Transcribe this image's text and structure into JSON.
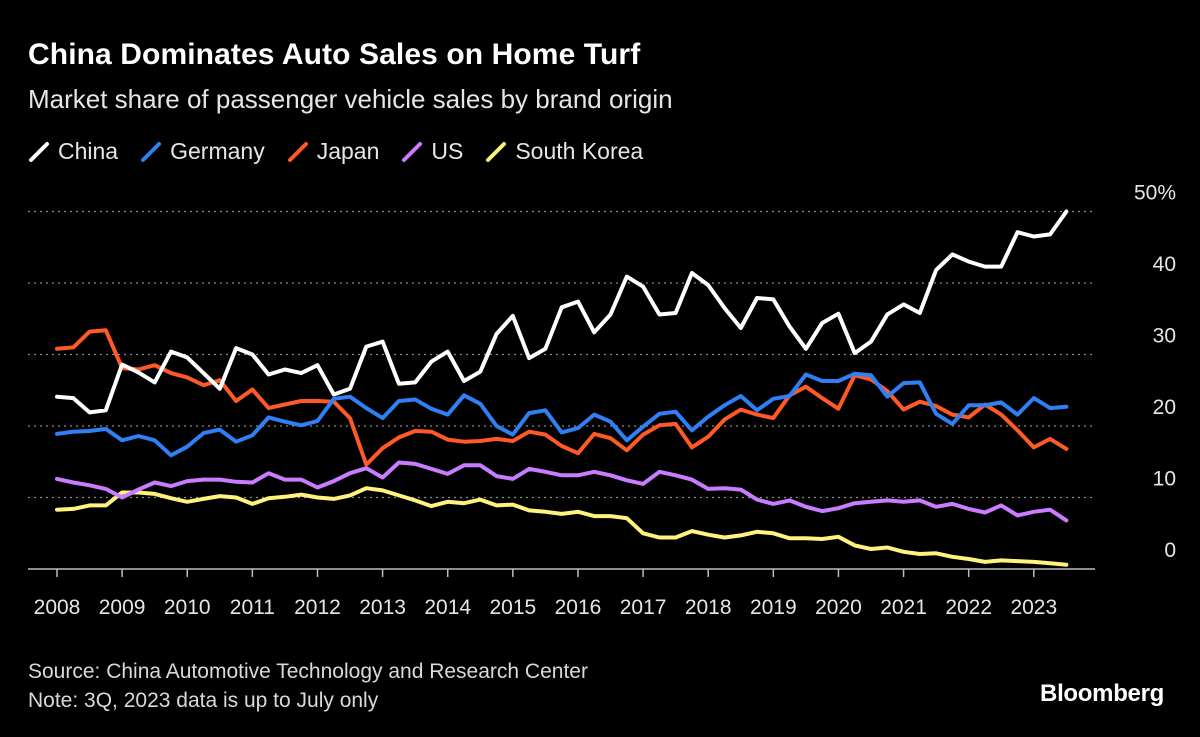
{
  "title": "China Dominates Auto Sales on Home Turf",
  "subtitle": "Market share of passenger vehicle sales by brand origin",
  "footer": {
    "source": "Source: China Automotive Technology and Research Center",
    "note": "Note: 3Q, 2023 data is up to July only"
  },
  "brand": "Bloomberg",
  "chart_data": {
    "type": "line",
    "x_labels": [
      "2008",
      "2009",
      "2010",
      "2011",
      "2012",
      "2013",
      "2014",
      "2015",
      "2016",
      "2017",
      "2018",
      "2019",
      "2020",
      "2021",
      "2022",
      "2023"
    ],
    "x_start": "2008Q1",
    "frequency": "quarterly",
    "y_ticks": [
      0,
      10,
      20,
      30,
      40,
      50
    ],
    "y_tick_labels": [
      "0",
      "10",
      "20",
      "30",
      "40",
      "50%"
    ],
    "ylim": [
      -3,
      50
    ],
    "grid": "horizontal dotted",
    "legend": "top-left",
    "series": [
      {
        "name": "China",
        "color": "#ffffff",
        "values": [
          24.1,
          23.9,
          21.9,
          22.2,
          28.6,
          27.5,
          26.1,
          30.4,
          29.6,
          27.4,
          25.2,
          30.9,
          30.0,
          27.2,
          27.9,
          27.4,
          28.5,
          24.4,
          25.2,
          31.1,
          31.8,
          25.9,
          26.1,
          29.0,
          30.4,
          26.3,
          27.6,
          32.9,
          35.4,
          29.5,
          30.8,
          36.6,
          37.4,
          33.1,
          35.6,
          40.9,
          39.5,
          35.6,
          35.8,
          41.4,
          39.7,
          36.5,
          33.7,
          37.9,
          37.7,
          33.9,
          30.8,
          34.4,
          35.7,
          30.2,
          31.8,
          35.6,
          37.0,
          35.8,
          41.8,
          44.0,
          43.0,
          42.3,
          42.3,
          47.1,
          46.5,
          46.8,
          50.0
        ]
      },
      {
        "name": "Germany",
        "color": "#2f7ff5",
        "values": [
          18.9,
          19.2,
          19.3,
          19.6,
          18.0,
          18.6,
          18.0,
          15.9,
          17.1,
          19.0,
          19.5,
          17.8,
          18.7,
          21.2,
          20.6,
          20.1,
          20.7,
          23.8,
          24.1,
          22.5,
          21.1,
          23.5,
          23.7,
          22.4,
          21.6,
          24.3,
          23.1,
          20.0,
          18.8,
          21.8,
          22.2,
          19.1,
          19.7,
          21.6,
          20.6,
          18.0,
          19.9,
          21.7,
          22.0,
          19.4,
          21.3,
          22.9,
          24.2,
          22.2,
          23.8,
          24.2,
          27.2,
          26.3,
          26.3,
          27.3,
          27.1,
          24.1,
          26.0,
          26.1,
          21.7,
          20.3,
          22.9,
          22.9,
          23.3,
          21.6,
          23.9,
          22.5,
          22.7
        ]
      },
      {
        "name": "Japan",
        "color": "#ff5a26",
        "values": [
          30.8,
          31.0,
          33.2,
          33.4,
          28.1,
          27.9,
          28.5,
          27.4,
          26.8,
          25.7,
          26.4,
          23.5,
          25.1,
          22.5,
          23.0,
          23.5,
          23.5,
          23.4,
          21.1,
          14.6,
          16.9,
          18.4,
          19.3,
          19.2,
          18.1,
          17.8,
          17.9,
          18.2,
          17.9,
          19.2,
          18.8,
          17.2,
          16.2,
          18.9,
          18.3,
          16.6,
          18.8,
          20.1,
          20.3,
          17.0,
          18.5,
          20.9,
          22.3,
          21.6,
          21.1,
          24.3,
          25.5,
          23.9,
          22.4,
          27.1,
          26.5,
          24.9,
          22.3,
          23.4,
          22.8,
          21.6,
          21.2,
          23.0,
          21.6,
          19.4,
          17.0,
          18.2,
          16.8
        ]
      },
      {
        "name": "US",
        "color": "#c97cff",
        "values": [
          12.6,
          12.1,
          11.7,
          11.2,
          10.0,
          11.1,
          12.1,
          11.6,
          12.3,
          12.5,
          12.5,
          12.2,
          12.1,
          13.4,
          12.5,
          12.5,
          11.4,
          12.3,
          13.4,
          14.1,
          12.8,
          14.9,
          14.7,
          14.0,
          13.3,
          14.5,
          14.5,
          13.0,
          12.6,
          14.0,
          13.6,
          13.1,
          13.1,
          13.6,
          13.1,
          12.4,
          11.9,
          13.6,
          13.1,
          12.5,
          11.2,
          11.3,
          11.1,
          9.7,
          9.1,
          9.6,
          8.7,
          8.1,
          8.5,
          9.2,
          9.4,
          9.6,
          9.4,
          9.6,
          8.7,
          9.1,
          8.4,
          7.9,
          8.9,
          7.5,
          8.0,
          8.3,
          6.8
        ]
      },
      {
        "name": "South Korea",
        "color": "#fff27d",
        "values": [
          8.3,
          8.4,
          8.9,
          8.9,
          10.7,
          10.7,
          10.5,
          9.9,
          9.4,
          9.8,
          10.2,
          10.0,
          9.1,
          9.9,
          10.1,
          10.4,
          10.0,
          9.8,
          10.3,
          11.3,
          11.0,
          10.3,
          9.6,
          8.8,
          9.4,
          9.2,
          9.7,
          8.9,
          9.0,
          8.2,
          8.0,
          7.7,
          8.0,
          7.4,
          7.4,
          7.1,
          5.0,
          4.4,
          4.4,
          5.3,
          4.8,
          4.4,
          4.7,
          5.2,
          5.0,
          4.3,
          4.3,
          4.2,
          4.5,
          3.3,
          2.8,
          3.0,
          2.4,
          2.1,
          2.2,
          1.7,
          1.4,
          1.0,
          1.2,
          1.1,
          1.0,
          0.8,
          0.6
        ]
      }
    ]
  }
}
